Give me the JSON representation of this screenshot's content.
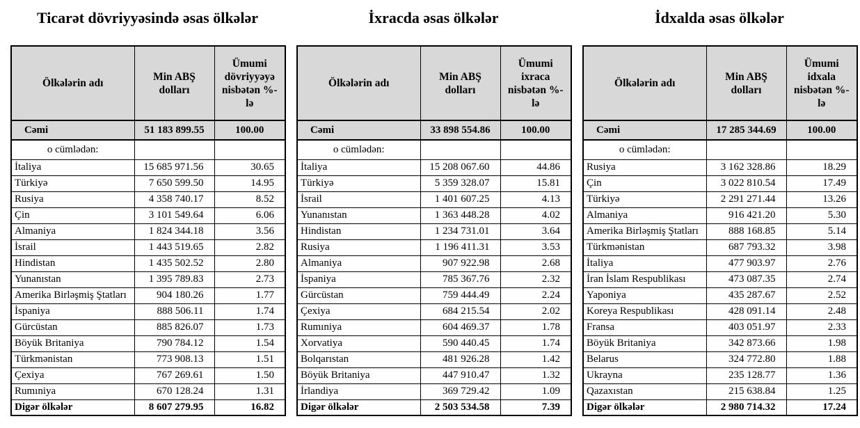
{
  "tables": [
    {
      "title": "Ticarət dövriyyəsində əsas ölkələr",
      "columns": [
        "Ölkələrin adı",
        "Min ABŞ dolları",
        "Ümumi dövriyyəyə nisbətən %-lə"
      ],
      "total": {
        "label": "Cəmi",
        "value": "51 183 899.55",
        "pct": "100.00"
      },
      "subheader": "o cümlədən:",
      "rows": [
        {
          "country": "İtaliya",
          "value": "15 685 971.56",
          "pct": "30.65"
        },
        {
          "country": "Türkiyə",
          "value": "7 650 599.50",
          "pct": "14.95"
        },
        {
          "country": "Rusiya",
          "value": "4 358 740.17",
          "pct": "8.52"
        },
        {
          "country": "Çin",
          "value": "3 101 549.64",
          "pct": "6.06"
        },
        {
          "country": "Almaniya",
          "value": "1 824 344.18",
          "pct": "3.56"
        },
        {
          "country": "İsrail",
          "value": "1 443 519.65",
          "pct": "2.82"
        },
        {
          "country": "Hindistan",
          "value": "1 435 502.52",
          "pct": "2.80"
        },
        {
          "country": "Yunanıstan",
          "value": "1 395 789.83",
          "pct": "2.73"
        },
        {
          "country": "Amerika Birləşmiş Ştatları",
          "value": "904 180.26",
          "pct": "1.77"
        },
        {
          "country": "İspaniya",
          "value": "888 506.11",
          "pct": "1.74"
        },
        {
          "country": "Gürcüstan",
          "value": "885 826.07",
          "pct": "1.73"
        },
        {
          "country": "Böyük Britaniya",
          "value": "790 784.12",
          "pct": "1.54"
        },
        {
          "country": "Türkmənistan",
          "value": "773 908.13",
          "pct": "1.51"
        },
        {
          "country": "Çexiya",
          "value": "767 269.61",
          "pct": "1.50"
        },
        {
          "country": "Rumıniya",
          "value": "670 128.24",
          "pct": "1.31"
        }
      ],
      "footer": {
        "label": "Digər ölkələr",
        "value": "8 607 279.95",
        "pct": "16.82"
      }
    },
    {
      "title": "İxracda əsas ölkələr",
      "columns": [
        "Ölkələrin adı",
        "Min ABŞ dolları",
        "Ümumi ixraca nisbətən %-lə"
      ],
      "total": {
        "label": "Cəmi",
        "value": "33 898 554.86",
        "pct": "100.00"
      },
      "subheader": "o cümlədən:",
      "rows": [
        {
          "country": "İtaliya",
          "value": "15 208 067.60",
          "pct": "44.86"
        },
        {
          "country": "Türkiyə",
          "value": "5 359 328.07",
          "pct": "15.81"
        },
        {
          "country": "İsrail",
          "value": "1 401 607.25",
          "pct": "4.13"
        },
        {
          "country": "Yunanıstan",
          "value": "1 363 448.28",
          "pct": "4.02"
        },
        {
          "country": "Hindistan",
          "value": "1 234 731.01",
          "pct": "3.64"
        },
        {
          "country": "Rusiya",
          "value": "1 196 411.31",
          "pct": "3.53"
        },
        {
          "country": "Almaniya",
          "value": "907 922.98",
          "pct": "2.68"
        },
        {
          "country": "İspaniya",
          "value": "785 367.76",
          "pct": "2.32"
        },
        {
          "country": "Gürcüstan",
          "value": "759 444.49",
          "pct": "2.24"
        },
        {
          "country": "Çexiya",
          "value": "684 215.54",
          "pct": "2.02"
        },
        {
          "country": "Rumıniya",
          "value": "604 469.37",
          "pct": "1.78"
        },
        {
          "country": "Xorvatiya",
          "value": "590 440.45",
          "pct": "1.74"
        },
        {
          "country": "Bolqarıstan",
          "value": "481 926.28",
          "pct": "1.42"
        },
        {
          "country": "Böyük Britaniya",
          "value": "447 910.47",
          "pct": "1.32"
        },
        {
          "country": "İrlandiya",
          "value": "369 729.42",
          "pct": "1.09"
        }
      ],
      "footer": {
        "label": "Digər ölkələr",
        "value": "2 503 534.58",
        "pct": "7.39"
      }
    },
    {
      "title": "İdxalda əsas ölkələr",
      "columns": [
        "Ölkələrin adı",
        "Min ABŞ dolları",
        "Ümumi idxala nisbətən %-lə"
      ],
      "total": {
        "label": "Cəmi",
        "value": "17 285 344.69",
        "pct": "100.00"
      },
      "subheader": "o cümlədən:",
      "rows": [
        {
          "country": "Rusiya",
          "value": "3 162 328.86",
          "pct": "18.29"
        },
        {
          "country": "Çin",
          "value": "3 022 810.54",
          "pct": "17.49"
        },
        {
          "country": "Türkiyə",
          "value": "2 291 271.44",
          "pct": "13.26"
        },
        {
          "country": "Almaniya",
          "value": "916 421.20",
          "pct": "5.30"
        },
        {
          "country": "Amerika Birləşmiş Ştatları",
          "value": "888 168.85",
          "pct": "5.14"
        },
        {
          "country": "Türkmənistan",
          "value": "687 793.32",
          "pct": "3.98"
        },
        {
          "country": "İtaliya",
          "value": "477 903.97",
          "pct": "2.76"
        },
        {
          "country": "İran İslam Respublikası",
          "value": "473 087.35",
          "pct": "2.74"
        },
        {
          "country": "Yaponiya",
          "value": "435 287.67",
          "pct": "2.52"
        },
        {
          "country": "Koreya Respublikası",
          "value": "428 091.14",
          "pct": "2.48"
        },
        {
          "country": "Fransa",
          "value": "403 051.97",
          "pct": "2.33"
        },
        {
          "country": "Böyük Britaniya",
          "value": "342 873.66",
          "pct": "1.98"
        },
        {
          "country": "Belarus",
          "value": "324 772.80",
          "pct": "1.88"
        },
        {
          "country": "Ukrayna",
          "value": "235 128.77",
          "pct": "1.36"
        },
        {
          "country": "Qazaxıstan",
          "value": "215 638.84",
          "pct": "1.25"
        }
      ],
      "footer": {
        "label": "Digər ölkələr",
        "value": "2 980 714.32",
        "pct": "17.24"
      }
    }
  ]
}
